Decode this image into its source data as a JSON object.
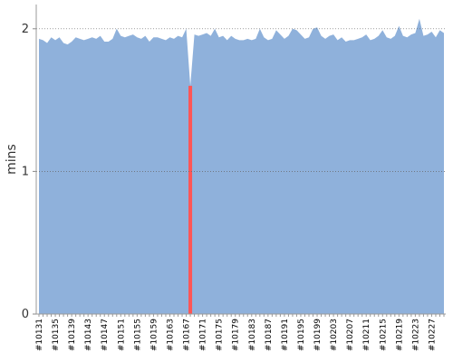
{
  "chart_data": {
    "type": "area",
    "ylabel": "mins",
    "categories": [
      "#10131",
      null,
      null,
      null,
      "#10135",
      null,
      null,
      null,
      "#10139",
      null,
      null,
      null,
      "#10143",
      null,
      null,
      null,
      "#10147",
      null,
      null,
      null,
      "#10151",
      null,
      null,
      null,
      "#10155",
      null,
      null,
      null,
      "#10159",
      null,
      null,
      null,
      "#10163",
      null,
      null,
      null,
      "#10167",
      null,
      null,
      null,
      "#10171",
      null,
      null,
      null,
      "#10175",
      null,
      null,
      null,
      "#10179",
      null,
      null,
      null,
      "#10183",
      null,
      null,
      null,
      "#10187",
      null,
      null,
      null,
      "#10191",
      null,
      null,
      null,
      "#10195",
      null,
      null,
      null,
      "#10199",
      null,
      null,
      null,
      "#10203",
      null,
      null,
      null,
      "#10207",
      null,
      null,
      null,
      "#10211",
      null,
      null,
      null,
      "#10215",
      null,
      null,
      null,
      "#10219",
      null,
      null,
      null,
      "#10223",
      null,
      null,
      null,
      "#10227",
      null,
      null,
      null
    ],
    "series": [
      {
        "color": "#8fb1db",
        "values": [
          1.93,
          1.92,
          1.9,
          1.94,
          1.92,
          1.94,
          1.9,
          1.89,
          1.91,
          1.94,
          1.93,
          1.92,
          1.93,
          1.94,
          1.93,
          1.95,
          1.91,
          1.91,
          1.93,
          2.0,
          1.95,
          1.94,
          1.95,
          1.96,
          1.94,
          1.93,
          1.95,
          1.91,
          1.94,
          1.94,
          1.93,
          1.92,
          1.94,
          1.93,
          1.95,
          1.94,
          2.0,
          1.6,
          1.96,
          1.95,
          1.96,
          1.97,
          1.95,
          2.0,
          1.94,
          1.95,
          1.92,
          1.95,
          1.93,
          1.92,
          1.92,
          1.93,
          1.92,
          1.93,
          2.0,
          1.94,
          1.92,
          1.93,
          1.99,
          1.96,
          1.93,
          1.95,
          2.0,
          1.99,
          1.96,
          1.93,
          1.94,
          2.0,
          2.01,
          1.95,
          1.93,
          1.95,
          1.96,
          1.92,
          1.94,
          1.91,
          1.92,
          1.92,
          1.93,
          1.94,
          1.96,
          1.92,
          1.93,
          1.95,
          1.99,
          1.94,
          1.93,
          1.95,
          2.02,
          1.95,
          1.94,
          1.96,
          1.97,
          2.07,
          1.95,
          1.96,
          1.98,
          1.94,
          1.99,
          1.97
        ]
      }
    ],
    "highlight": {
      "index": 37,
      "color": "#ff5555"
    },
    "ylim": [
      0,
      2.17
    ],
    "yticks": [
      0,
      1,
      2
    ],
    "grid": true
  }
}
